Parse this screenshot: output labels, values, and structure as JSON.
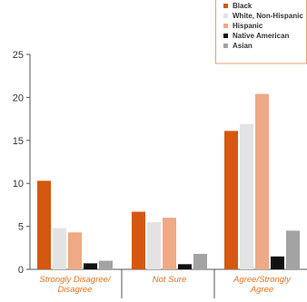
{
  "chart_data": {
    "type": "bar",
    "categories": [
      "Strongly Disagree/ Disagree",
      "Not Sure",
      "Agree/Strongly Agree"
    ],
    "category_lines": [
      [
        "Strongly Disagree/",
        "Disagree"
      ],
      [
        "Not Sure"
      ],
      [
        "Agree/Strongly",
        "Agree"
      ]
    ],
    "series": [
      {
        "name": "Black",
        "color": "#d4580f",
        "values": [
          10.3,
          6.7,
          16.1
        ]
      },
      {
        "name": "White, Non-Hispanic",
        "color": "#e3e3e3",
        "values": [
          4.8,
          5.5,
          16.9
        ]
      },
      {
        "name": "Hispanic",
        "color": "#eeaa84",
        "values": [
          4.3,
          6.0,
          20.4
        ]
      },
      {
        "name": "Native American",
        "color": "#111111",
        "values": [
          0.7,
          0.6,
          1.5
        ]
      },
      {
        "name": "Asian",
        "color": "#a3a3a3",
        "values": [
          1.0,
          1.8,
          4.5
        ]
      }
    ],
    "ylim": [
      0,
      25
    ],
    "yticks": [
      "0",
      "5",
      "10",
      "15",
      "20",
      "25"
    ],
    "xlabel": "",
    "ylabel": "",
    "title": "",
    "legend_position": "top-right",
    "grid": false,
    "colors": {
      "axis": "#555555",
      "category_label": "#e2731f",
      "legend_border": "#e8a070"
    }
  }
}
